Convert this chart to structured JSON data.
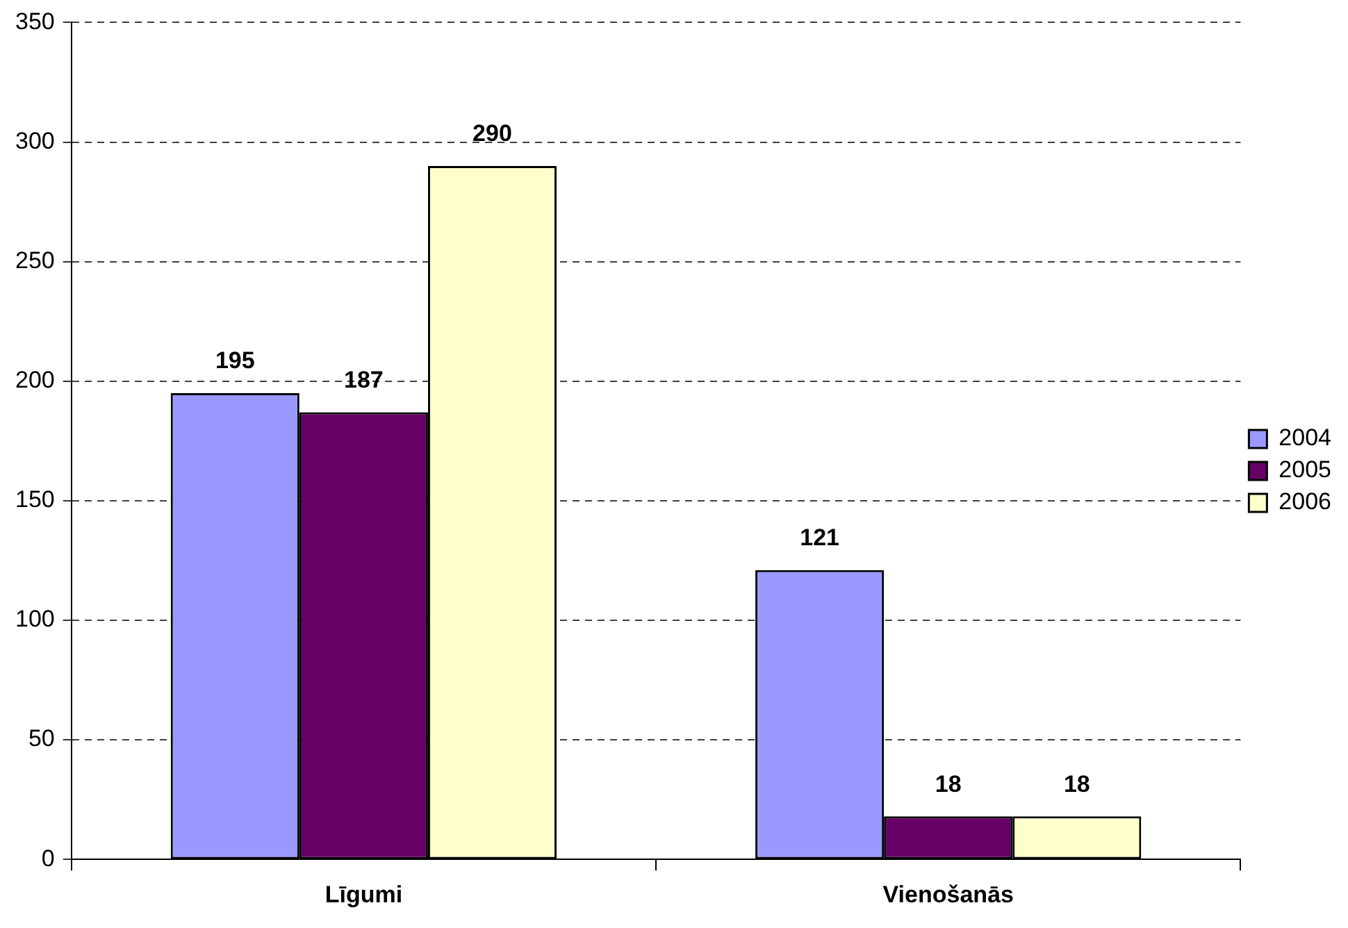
{
  "chart_data": {
    "type": "bar",
    "categories": [
      "Līgumi",
      "Vienošanās"
    ],
    "series": [
      {
        "name": "2004",
        "color": "#9999ff",
        "values": [
          195,
          121
        ]
      },
      {
        "name": "2005",
        "color": "#660066",
        "values": [
          187,
          18
        ]
      },
      {
        "name": "2006",
        "color": "#ffffcc",
        "values": [
          290,
          18
        ]
      }
    ],
    "ylim": [
      0,
      350
    ],
    "yticks": [
      0,
      50,
      100,
      150,
      200,
      250,
      300,
      350
    ],
    "grid": "y",
    "legend": "right",
    "data_labels": true
  }
}
